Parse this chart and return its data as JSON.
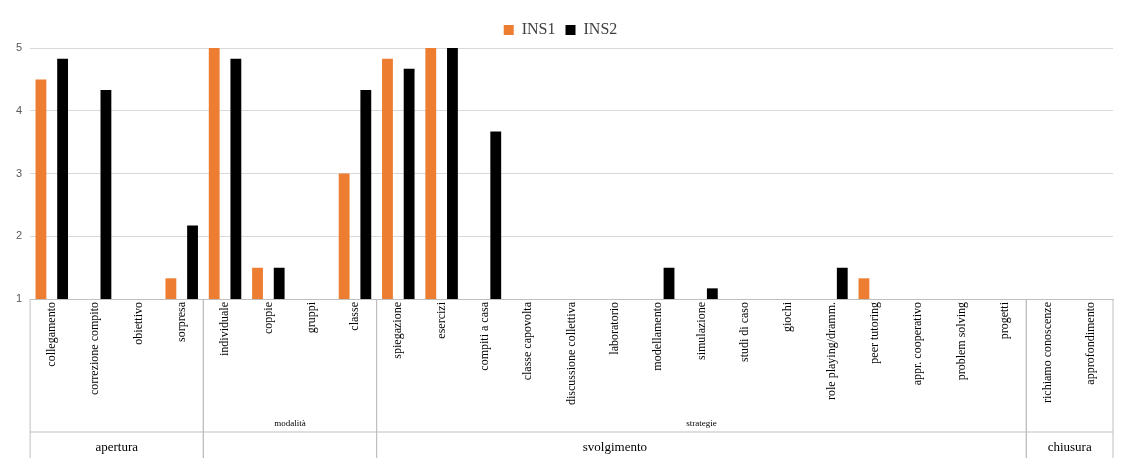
{
  "chart_data": {
    "type": "bar",
    "categories": [
      "collegamento",
      "correzione compito",
      "obiettivo",
      "sorpresa",
      "individuale",
      "coppie",
      "gruppi",
      "classe",
      "spiegazione",
      "esercizi",
      "compiti a casa",
      "classe capovolta",
      "discussione collettiva",
      "laboratorio",
      "modellamento",
      "simulazione",
      "studi di caso",
      "giochi",
      "role playing/dramm.",
      "peer tutoring",
      "appr. cooperativo",
      "problem solving",
      "progetti",
      "richiamo conoscenze",
      "approfondimento"
    ],
    "series": [
      {
        "name": "INS1",
        "color": "#ed7d31",
        "values": [
          4.5,
          null,
          null,
          1.33,
          5,
          1.5,
          null,
          3,
          4.83,
          5,
          null,
          null,
          null,
          null,
          null,
          null,
          null,
          null,
          null,
          1.33,
          null,
          null,
          null,
          null,
          null
        ]
      },
      {
        "name": "INS2",
        "color": "#000000",
        "values": [
          4.83,
          4.33,
          null,
          2.17,
          4.83,
          1.5,
          null,
          4.33,
          4.67,
          5,
          3.67,
          null,
          null,
          null,
          1.5,
          1.17,
          null,
          null,
          1.5,
          null,
          null,
          null,
          null,
          null,
          null
        ]
      }
    ],
    "ylim": [
      1,
      5
    ],
    "yticks": [
      1,
      2,
      3,
      4,
      5
    ],
    "grid": "y",
    "legend": "top",
    "annotations": [
      "modalità",
      "strategie",
      "apertura",
      "svolgimento",
      "chiusura"
    ]
  }
}
